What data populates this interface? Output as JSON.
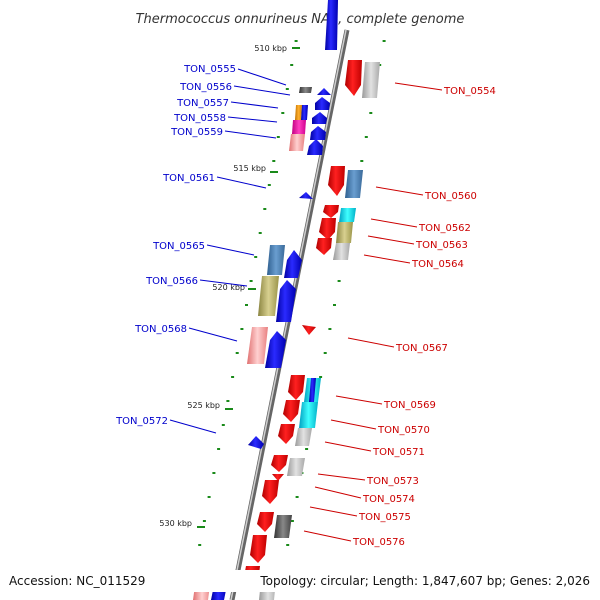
{
  "title": "Thermococcus onnurineus NA1, complete genome",
  "accession": "Accession: NC_011529",
  "topology": "Topology: circular; Length: 1,847,607 bp; Genes: 2,026",
  "kbp_labels": [
    "510 kbp",
    "515 kbp",
    "520 kbp",
    "525 kbp",
    "530 kbp"
  ],
  "left_labels": [
    "TON_0555",
    "TON_0556",
    "TON_0557",
    "TON_0558",
    "TON_0559",
    "TON_0561",
    "TON_0565",
    "TON_0566",
    "TON_0568",
    "TON_0572"
  ],
  "right_labels": [
    "TON_0554",
    "TON_0560",
    "TON_0562",
    "TON_0563",
    "TON_0564",
    "TON_0567",
    "TON_0569",
    "TON_0570",
    "TON_0571",
    "TON_0573",
    "TON_0574",
    "TON_0575",
    "TON_0576"
  ],
  "colors": {
    "forward_label": "#0000cc",
    "reverse_label": "#cc0000",
    "forward_gene": "#0000ee",
    "reverse_gene": "#ee0000",
    "tick": "#1a8a1a",
    "backbone": "#888888"
  }
}
